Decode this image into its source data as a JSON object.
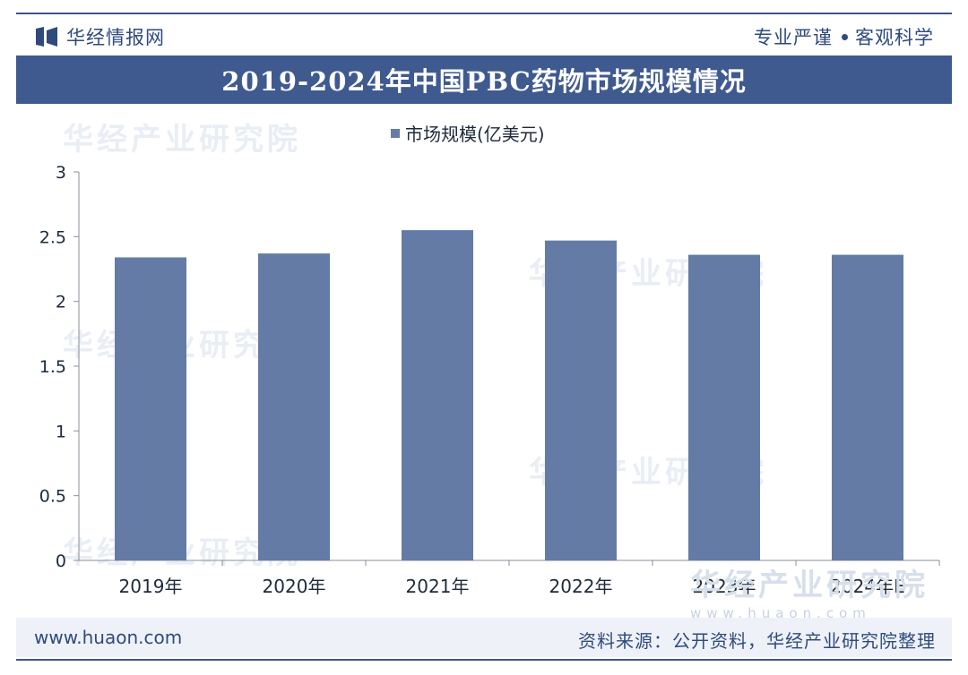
{
  "header": {
    "brand_name": "华经情报网",
    "slogan_left": "专业严谨",
    "slogan_right": "客观科学"
  },
  "title": "2019-2024年中国PBC药物市场规模情况",
  "chart_data": {
    "type": "bar",
    "title": "2019-2024年中国PBC药物市场规模情况",
    "categories": [
      "2019年",
      "2020年",
      "2021年",
      "2022年",
      "2023年",
      "2024年E"
    ],
    "series": [
      {
        "name": "市场规模(亿美元)",
        "values": [
          2.34,
          2.37,
          2.55,
          2.47,
          2.36,
          2.36
        ],
        "color": "#647ba6"
      }
    ],
    "yticks": [
      "0",
      "0.5",
      "1",
      "1.5",
      "2",
      "2.5",
      "3"
    ],
    "ylim": [
      0,
      3
    ],
    "xlabel": "",
    "ylabel": "",
    "legend_position": "top-center",
    "grid": false
  },
  "watermark": {
    "text": "华经产业研究院",
    "site": "www.huaon.com"
  },
  "footer": {
    "website": "www.huaon.com",
    "source": "资料来源：公开资料，华经产业研究院整理"
  },
  "colors": {
    "accent": "#3f5a8f",
    "bar": "#647ba6",
    "text": "#2f4a7c"
  }
}
